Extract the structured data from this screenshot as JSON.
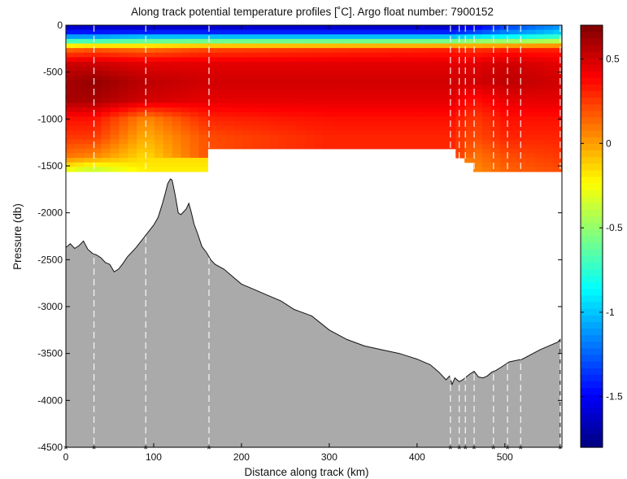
{
  "chart_data": {
    "type": "heatmap",
    "title": "Along track potential temperature profiles [˚C]. Argo float number: 7900152",
    "xlabel": "Distance along track (km)",
    "ylabel": "Pressure (db)",
    "xlim": [
      0,
      565
    ],
    "ylim": [
      -4500,
      0
    ],
    "x_ticks": [
      0,
      100,
      200,
      300,
      400,
      500
    ],
    "y_ticks": [
      0,
      -500,
      -1000,
      -1500,
      -2000,
      -2500,
      -3000,
      -3500,
      -4000,
      -4500
    ],
    "colorbar": {
      "colormap": "jet",
      "range": [
        -1.8,
        0.7
      ],
      "ticks": [
        0.5,
        0,
        -0.5,
        -1,
        -1.5
      ],
      "tick_labels": [
        "0.5",
        "0",
        "-0.5",
        "-1",
        "-1.5"
      ]
    },
    "profile_distances_km": [
      0,
      32,
      91,
      163,
      438,
      448,
      455,
      465,
      487,
      503,
      518,
      563
    ],
    "profile_depths_db": [
      -1560,
      -1560,
      -1560,
      -1560,
      -1300,
      -1400,
      -1480,
      -1560,
      -1560,
      -1560,
      -1560,
      -1560
    ],
    "temperature_profiles": {
      "pressure_db": [
        -50,
        -150,
        -250,
        -400,
        -600,
        -800,
        -1000,
        -1200,
        -1400,
        -1550
      ],
      "columns": [
        {
          "x": 0,
          "values": [
            -1.6,
            -0.9,
            0.1,
            0.5,
            0.6,
            0.6,
            0.35,
            0.25,
            0.1,
            -0.3
          ]
        },
        {
          "x": 32,
          "values": [
            -1.6,
            -0.9,
            0.15,
            0.5,
            0.65,
            0.6,
            0.35,
            0.25,
            0.05,
            -0.4
          ]
        },
        {
          "x": 91,
          "values": [
            -1.6,
            -0.8,
            0.1,
            0.45,
            0.55,
            0.5,
            0.05,
            -0.05,
            -0.15,
            -0.2
          ]
        },
        {
          "x": 163,
          "values": [
            -1.6,
            -0.8,
            0.2,
            0.45,
            0.5,
            0.45,
            0.3,
            0.2,
            null,
            null
          ]
        },
        {
          "x": 300,
          "values": [
            -1.6,
            -0.8,
            0.25,
            0.45,
            0.5,
            0.45,
            0.35,
            0.3,
            null,
            null
          ]
        },
        {
          "x": 438,
          "values": [
            -1.6,
            -0.8,
            0.3,
            0.45,
            0.5,
            0.45,
            0.35,
            0.3,
            null,
            null
          ]
        },
        {
          "x": 465,
          "values": [
            -1.5,
            -0.7,
            0.25,
            0.45,
            0.5,
            0.35,
            0.25,
            0.2,
            0.1,
            0.05
          ]
        },
        {
          "x": 503,
          "values": [
            -1.3,
            -0.7,
            0.3,
            0.5,
            0.55,
            0.45,
            0.35,
            0.3,
            0.2,
            0.15
          ]
        },
        {
          "x": 563,
          "values": [
            -1.1,
            -0.6,
            0.3,
            0.45,
            0.5,
            0.45,
            0.35,
            0.3,
            0.25,
            0.2
          ]
        }
      ]
    },
    "bathymetry": {
      "x": [
        0,
        5,
        10,
        15,
        20,
        25,
        30,
        35,
        40,
        45,
        50,
        55,
        60,
        65,
        70,
        80,
        90,
        100,
        105,
        110,
        113,
        116,
        119,
        121,
        123,
        125,
        128,
        131,
        134,
        137,
        140,
        143,
        146,
        150,
        155,
        160,
        165,
        170,
        180,
        190,
        200,
        215,
        230,
        245,
        260,
        280,
        300,
        320,
        340,
        360,
        380,
        400,
        415,
        425,
        433,
        437,
        440,
        443,
        448,
        452,
        456,
        460,
        465,
        470,
        475,
        480,
        485,
        490,
        495,
        500,
        505,
        510,
        520,
        530,
        540,
        550,
        555,
        560,
        563
      ],
      "depth": [
        -2370,
        -2330,
        -2380,
        -2350,
        -2300,
        -2390,
        -2430,
        -2450,
        -2480,
        -2530,
        -2550,
        -2630,
        -2600,
        -2540,
        -2470,
        -2370,
        -2250,
        -2130,
        -2050,
        -1900,
        -1800,
        -1690,
        -1640,
        -1650,
        -1740,
        -1840,
        -2000,
        -2020,
        -1990,
        -1960,
        -1900,
        -2000,
        -2120,
        -2220,
        -2360,
        -2420,
        -2500,
        -2550,
        -2600,
        -2680,
        -2760,
        -2820,
        -2880,
        -2940,
        -3030,
        -3100,
        -3250,
        -3350,
        -3420,
        -3460,
        -3500,
        -3560,
        -3620,
        -3700,
        -3780,
        -3740,
        -3830,
        -3760,
        -3800,
        -3780,
        -3750,
        -3720,
        -3690,
        -3750,
        -3760,
        -3740,
        -3700,
        -3680,
        -3650,
        -3620,
        -3590,
        -3580,
        -3560,
        -3510,
        -3460,
        -3420,
        -3400,
        -3380,
        -3350
      ]
    },
    "profile_marker": "*",
    "grid": false
  }
}
